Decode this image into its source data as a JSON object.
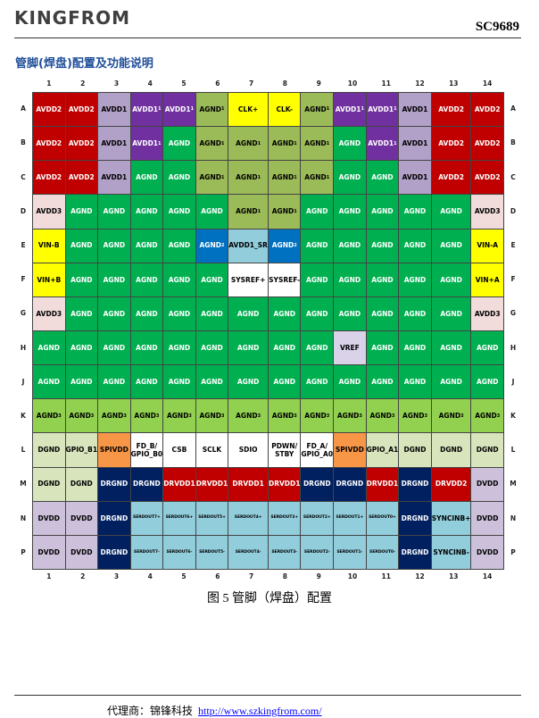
{
  "header": {
    "logo": "KINGFROM",
    "part": "SC9689"
  },
  "section_title": "管脚(焊盘)配置及功能说明",
  "table": {
    "columns": [
      1,
      2,
      3,
      4,
      5,
      6,
      7,
      8,
      9,
      10,
      11,
      12,
      13,
      14
    ],
    "rows": [
      {
        "label": "A",
        "cells": [
          {
            "text": "AVDD2",
            "bg": "#c00000"
          },
          {
            "text": "AVDD2",
            "bg": "#c00000"
          },
          {
            "text": "AVDD1",
            "bg": "#b1a0c7"
          },
          {
            "text": "AVDD1",
            "sup": "1",
            "bg": "#7030a0"
          },
          {
            "text": "AVDD1",
            "sup": "1",
            "bg": "#7030a0"
          },
          {
            "text": "AGND",
            "sup": "1",
            "bg": "#9bbb59"
          },
          {
            "text": "CLK+",
            "bg": "#ffff00"
          },
          {
            "text": "CLK-",
            "bg": "#ffff00"
          },
          {
            "text": "AGND",
            "sup": "1",
            "bg": "#9bbb59"
          },
          {
            "text": "AVDD1",
            "sup": "1",
            "bg": "#7030a0"
          },
          {
            "text": "AVDD1",
            "sup": "1",
            "bg": "#7030a0"
          },
          {
            "text": "AVDD1",
            "bg": "#b1a0c7"
          },
          {
            "text": "AVDD2",
            "bg": "#c00000"
          },
          {
            "text": "AVDD2",
            "bg": "#c00000"
          }
        ]
      },
      {
        "label": "B",
        "cells": [
          {
            "text": "AVDD2",
            "bg": "#c00000"
          },
          {
            "text": "AVDD2",
            "bg": "#c00000"
          },
          {
            "text": "AVDD1",
            "bg": "#b1a0c7"
          },
          {
            "text": "AVDD1",
            "sup": "1",
            "bg": "#7030a0"
          },
          {
            "text": "AGND",
            "bg": "#00b050"
          },
          {
            "text": "AGND",
            "sup": "1",
            "bg": "#9bbb59"
          },
          {
            "text": "AGND",
            "sup": "1",
            "bg": "#9bbb59"
          },
          {
            "text": "AGND",
            "sup": "1",
            "bg": "#9bbb59"
          },
          {
            "text": "AGND",
            "sup": "1",
            "bg": "#9bbb59"
          },
          {
            "text": "AGND",
            "bg": "#00b050"
          },
          {
            "text": "AVDD1",
            "sup": "1",
            "bg": "#7030a0"
          },
          {
            "text": "AVDD1",
            "bg": "#b1a0c7"
          },
          {
            "text": "AVDD2",
            "bg": "#c00000"
          },
          {
            "text": "AVDD2",
            "bg": "#c00000"
          }
        ]
      },
      {
        "label": "C",
        "cells": [
          {
            "text": "AVDD2",
            "bg": "#c00000"
          },
          {
            "text": "AVDD2",
            "bg": "#c00000"
          },
          {
            "text": "AVDD1",
            "bg": "#b1a0c7"
          },
          {
            "text": "AGND",
            "bg": "#00b050"
          },
          {
            "text": "AGND",
            "bg": "#00b050"
          },
          {
            "text": "AGND",
            "sup": "1",
            "bg": "#9bbb59"
          },
          {
            "text": "AGND",
            "sup": "1",
            "bg": "#9bbb59"
          },
          {
            "text": "AGND",
            "sup": "1",
            "bg": "#9bbb59"
          },
          {
            "text": "AGND",
            "sup": "1",
            "bg": "#9bbb59"
          },
          {
            "text": "AGND",
            "bg": "#00b050"
          },
          {
            "text": "AGND",
            "bg": "#00b050"
          },
          {
            "text": "AVDD1",
            "bg": "#b1a0c7"
          },
          {
            "text": "AVDD2",
            "bg": "#c00000"
          },
          {
            "text": "AVDD2",
            "bg": "#c00000"
          }
        ]
      },
      {
        "label": "D",
        "cells": [
          {
            "text": "AVDD3",
            "bg": "#f2dcdb"
          },
          {
            "text": "AGND",
            "bg": "#00b050"
          },
          {
            "text": "AGND",
            "bg": "#00b050"
          },
          {
            "text": "AGND",
            "bg": "#00b050"
          },
          {
            "text": "AGND",
            "bg": "#00b050"
          },
          {
            "text": "AGND",
            "bg": "#00b050"
          },
          {
            "text": "AGND",
            "sup": "1",
            "bg": "#9bbb59"
          },
          {
            "text": "AGND",
            "sup": "1",
            "bg": "#9bbb59"
          },
          {
            "text": "AGND",
            "bg": "#00b050"
          },
          {
            "text": "AGND",
            "bg": "#00b050"
          },
          {
            "text": "AGND",
            "bg": "#00b050"
          },
          {
            "text": "AGND",
            "bg": "#00b050"
          },
          {
            "text": "AGND",
            "bg": "#00b050"
          },
          {
            "text": "AVDD3",
            "bg": "#f2dcdb"
          }
        ]
      },
      {
        "label": "E",
        "cells": [
          {
            "text": "VIN-B",
            "bg": "#ffff00"
          },
          {
            "text": "AGND",
            "bg": "#00b050"
          },
          {
            "text": "AGND",
            "bg": "#00b050"
          },
          {
            "text": "AGND",
            "bg": "#00b050"
          },
          {
            "text": "AGND",
            "bg": "#00b050"
          },
          {
            "text": "AGND",
            "sup": "2",
            "bg": "#0070c0"
          },
          {
            "text": "AVDD1_SR",
            "bg": "#92cddc"
          },
          {
            "text": "AGND",
            "sup": "2",
            "bg": "#0070c0"
          },
          {
            "text": "AGND",
            "bg": "#00b050"
          },
          {
            "text": "AGND",
            "bg": "#00b050"
          },
          {
            "text": "AGND",
            "bg": "#00b050"
          },
          {
            "text": "AGND",
            "bg": "#00b050"
          },
          {
            "text": "AGND",
            "bg": "#00b050"
          },
          {
            "text": "VIN-A",
            "bg": "#ffff00"
          }
        ]
      },
      {
        "label": "F",
        "cells": [
          {
            "text": "VIN+B",
            "bg": "#ffff00"
          },
          {
            "text": "AGND",
            "bg": "#00b050"
          },
          {
            "text": "AGND",
            "bg": "#00b050"
          },
          {
            "text": "AGND",
            "bg": "#00b050"
          },
          {
            "text": "AGND",
            "bg": "#00b050"
          },
          {
            "text": "AGND",
            "bg": "#00b050"
          },
          {
            "text": "SYSREF+",
            "bg": "#ffffff"
          },
          {
            "text": "SYSREF-",
            "bg": "#ffffff"
          },
          {
            "text": "AGND",
            "bg": "#00b050"
          },
          {
            "text": "AGND",
            "bg": "#00b050"
          },
          {
            "text": "AGND",
            "bg": "#00b050"
          },
          {
            "text": "AGND",
            "bg": "#00b050"
          },
          {
            "text": "AGND",
            "bg": "#00b050"
          },
          {
            "text": "VIN+A",
            "bg": "#ffff00"
          }
        ]
      },
      {
        "label": "G",
        "cells": [
          {
            "text": "AVDD3",
            "bg": "#f2dcdb"
          },
          {
            "text": "AGND",
            "bg": "#00b050"
          },
          {
            "text": "AGND",
            "bg": "#00b050"
          },
          {
            "text": "AGND",
            "bg": "#00b050"
          },
          {
            "text": "AGND",
            "bg": "#00b050"
          },
          {
            "text": "AGND",
            "bg": "#00b050"
          },
          {
            "text": "AGND",
            "bg": "#00b050"
          },
          {
            "text": "AGND",
            "bg": "#00b050"
          },
          {
            "text": "AGND",
            "bg": "#00b050"
          },
          {
            "text": "AGND",
            "bg": "#00b050"
          },
          {
            "text": "AGND",
            "bg": "#00b050"
          },
          {
            "text": "AGND",
            "bg": "#00b050"
          },
          {
            "text": "AGND",
            "bg": "#00b050"
          },
          {
            "text": "AVDD3",
            "bg": "#f2dcdb"
          }
        ]
      },
      {
        "label": "H",
        "cells": [
          {
            "text": "AGND",
            "bg": "#00b050"
          },
          {
            "text": "AGND",
            "bg": "#00b050"
          },
          {
            "text": "AGND",
            "bg": "#00b050"
          },
          {
            "text": "AGND",
            "bg": "#00b050"
          },
          {
            "text": "AGND",
            "bg": "#00b050"
          },
          {
            "text": "AGND",
            "bg": "#00b050"
          },
          {
            "text": "AGND",
            "bg": "#00b050"
          },
          {
            "text": "AGND",
            "bg": "#00b050"
          },
          {
            "text": "AGND",
            "bg": "#00b050"
          },
          {
            "text": "VREF",
            "bg": "#d9d2e9"
          },
          {
            "text": "AGND",
            "bg": "#00b050"
          },
          {
            "text": "AGND",
            "bg": "#00b050"
          },
          {
            "text": "AGND",
            "bg": "#00b050"
          },
          {
            "text": "AGND",
            "bg": "#00b050"
          }
        ]
      },
      {
        "label": "J",
        "cells": [
          {
            "text": "AGND",
            "bg": "#00b050"
          },
          {
            "text": "AGND",
            "bg": "#00b050"
          },
          {
            "text": "AGND",
            "bg": "#00b050"
          },
          {
            "text": "AGND",
            "bg": "#00b050"
          },
          {
            "text": "AGND",
            "bg": "#00b050"
          },
          {
            "text": "AGND",
            "bg": "#00b050"
          },
          {
            "text": "AGND",
            "bg": "#00b050"
          },
          {
            "text": "AGND",
            "bg": "#00b050"
          },
          {
            "text": "AGND",
            "bg": "#00b050"
          },
          {
            "text": "AGND",
            "bg": "#00b050"
          },
          {
            "text": "AGND",
            "bg": "#00b050"
          },
          {
            "text": "AGND",
            "bg": "#00b050"
          },
          {
            "text": "AGND",
            "bg": "#00b050"
          },
          {
            "text": "AGND",
            "bg": "#00b050"
          }
        ]
      },
      {
        "label": "K",
        "cells": [
          {
            "text": "AGND",
            "sup": "3",
            "bg": "#92d050"
          },
          {
            "text": "AGND",
            "sup": "3",
            "bg": "#92d050"
          },
          {
            "text": "AGND",
            "sup": "3",
            "bg": "#92d050"
          },
          {
            "text": "AGND",
            "sup": "3",
            "bg": "#92d050"
          },
          {
            "text": "AGND",
            "sup": "3",
            "bg": "#92d050"
          },
          {
            "text": "AGND",
            "sup": "3",
            "bg": "#92d050"
          },
          {
            "text": "AGND",
            "sup": "3",
            "bg": "#92d050"
          },
          {
            "text": "AGND",
            "sup": "3",
            "bg": "#92d050"
          },
          {
            "text": "AGND",
            "sup": "3",
            "bg": "#92d050"
          },
          {
            "text": "AGND",
            "sup": "3",
            "bg": "#92d050"
          },
          {
            "text": "AGND",
            "sup": "3",
            "bg": "#92d050"
          },
          {
            "text": "AGND",
            "sup": "3",
            "bg": "#92d050"
          },
          {
            "text": "AGND",
            "sup": "3",
            "bg": "#92d050"
          },
          {
            "text": "AGND",
            "sup": "3",
            "bg": "#92d050"
          }
        ]
      },
      {
        "label": "L",
        "cells": [
          {
            "text": "DGND",
            "bg": "#d8e4bc"
          },
          {
            "text": "GPIO_B1",
            "bg": "#d8e4bc"
          },
          {
            "text": "SPIVDD",
            "bg": "#f79646"
          },
          {
            "text": "FD_B/\nGPIO_B0",
            "bg": "#ffffff"
          },
          {
            "text": "CSB",
            "bg": "#ffffff"
          },
          {
            "text": "SCLK",
            "bg": "#ffffff"
          },
          {
            "text": "SDIO",
            "bg": "#ffffff"
          },
          {
            "text": "PDWN/\nSTBY",
            "bg": "#ffffff"
          },
          {
            "text": "FD_A/\nGPIO_A0",
            "bg": "#ffffff"
          },
          {
            "text": "SPIVDD",
            "bg": "#f79646"
          },
          {
            "text": "GPIO_A1",
            "bg": "#d8e4bc"
          },
          {
            "text": "DGND",
            "bg": "#d8e4bc"
          },
          {
            "text": "DGND",
            "bg": "#d8e4bc"
          },
          {
            "text": "DGND",
            "bg": "#d8e4bc"
          }
        ]
      },
      {
        "label": "M",
        "cells": [
          {
            "text": "DGND",
            "bg": "#d8e4bc"
          },
          {
            "text": "DGND",
            "bg": "#d8e4bc"
          },
          {
            "text": "DRGND",
            "bg": "#002060"
          },
          {
            "text": "DRGND",
            "bg": "#002060"
          },
          {
            "text": "DRVDD1",
            "bg": "#c00000"
          },
          {
            "text": "DRVDD1",
            "bg": "#c00000"
          },
          {
            "text": "DRVDD1",
            "bg": "#c00000"
          },
          {
            "text": "DRVDD1",
            "bg": "#c00000"
          },
          {
            "text": "DRGND",
            "bg": "#002060"
          },
          {
            "text": "DRGND",
            "bg": "#002060"
          },
          {
            "text": "DRVDD1",
            "bg": "#c00000"
          },
          {
            "text": "DRGND",
            "bg": "#002060"
          },
          {
            "text": "DRVDD2",
            "bg": "#c00000"
          },
          {
            "text": "DVDD",
            "bg": "#ccc0da"
          }
        ]
      },
      {
        "label": "N",
        "cells": [
          {
            "text": "DVDD",
            "bg": "#ccc0da"
          },
          {
            "text": "DVDD",
            "bg": "#ccc0da"
          },
          {
            "text": "DRGND",
            "bg": "#002060"
          },
          {
            "text": "SERDOUT7+",
            "bg": "#92cddc"
          },
          {
            "text": "SERDOUT6+",
            "bg": "#92cddc"
          },
          {
            "text": "SERDOUT5+",
            "bg": "#92cddc"
          },
          {
            "text": "SERDOUT4+",
            "bg": "#92cddc"
          },
          {
            "text": "SERDOUT3+",
            "bg": "#92cddc"
          },
          {
            "text": "SERDOUT2+",
            "bg": "#92cddc"
          },
          {
            "text": "SERDOUT1+",
            "bg": "#92cddc"
          },
          {
            "text": "SERDOUT0+",
            "bg": "#92cddc"
          },
          {
            "text": "DRGND",
            "bg": "#002060"
          },
          {
            "text": "SYNCINB+",
            "bg": "#92cddc"
          },
          {
            "text": "DVDD",
            "bg": "#ccc0da"
          }
        ]
      },
      {
        "label": "P",
        "cells": [
          {
            "text": "DVDD",
            "bg": "#ccc0da"
          },
          {
            "text": "DVDD",
            "bg": "#ccc0da"
          },
          {
            "text": "DRGND",
            "bg": "#002060"
          },
          {
            "text": "SERDOUT7-",
            "bg": "#92cddc"
          },
          {
            "text": "SERDOUT6-",
            "bg": "#92cddc"
          },
          {
            "text": "SERDOUT5-",
            "bg": "#92cddc"
          },
          {
            "text": "SERDOUT4-",
            "bg": "#92cddc"
          },
          {
            "text": "SERDOUT3-",
            "bg": "#92cddc"
          },
          {
            "text": "SERDOUT2-",
            "bg": "#92cddc"
          },
          {
            "text": "SERDOUT1-",
            "bg": "#92cddc"
          },
          {
            "text": "SERDOUT0-",
            "bg": "#92cddc"
          },
          {
            "text": "DRGND",
            "bg": "#002060"
          },
          {
            "text": "SYNCINB-",
            "bg": "#92cddc"
          },
          {
            "text": "DVDD",
            "bg": "#ccc0da"
          }
        ]
      }
    ]
  },
  "caption": "图 5 管脚（焊盘）配置",
  "footer": {
    "agent": "代理商：锦锋科技",
    "url": "http://www.szkingfrom.com/"
  }
}
